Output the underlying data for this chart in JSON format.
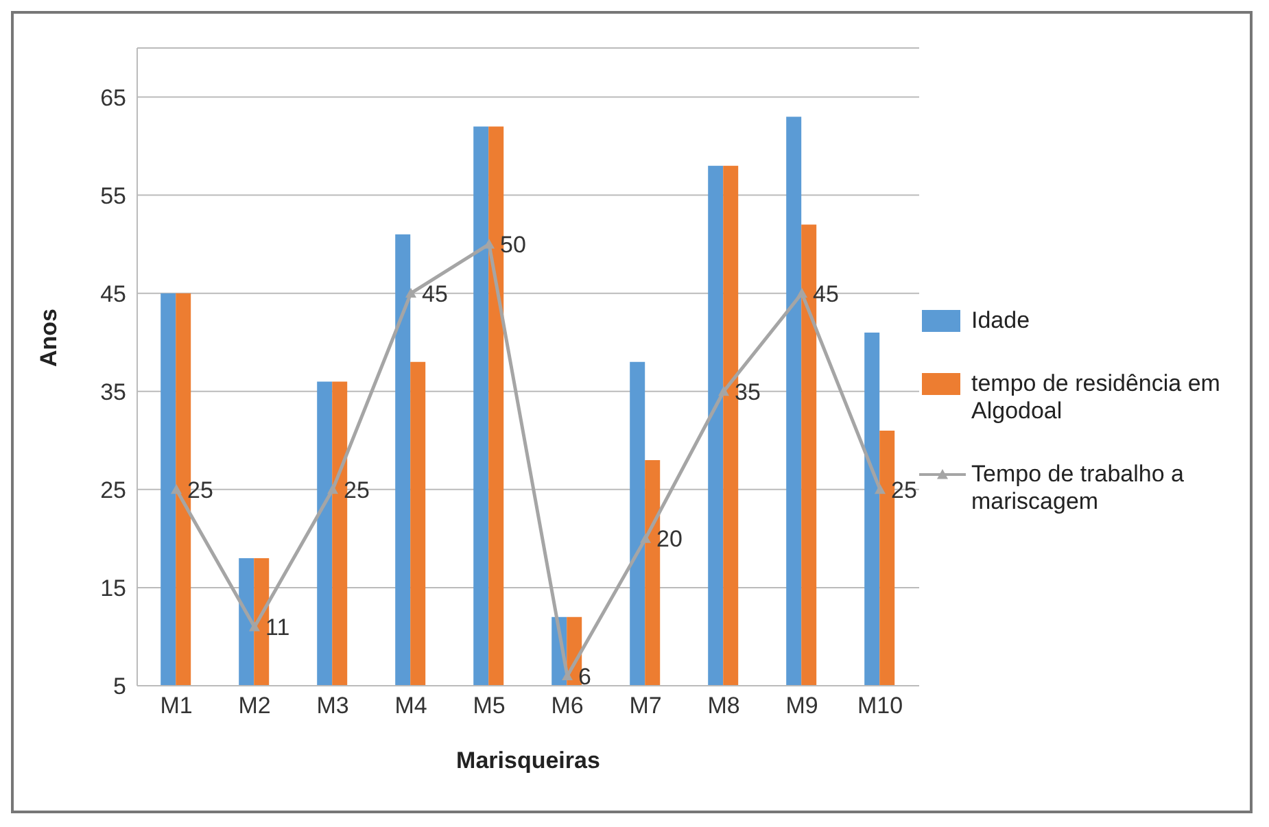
{
  "chart_data": {
    "type": "bar",
    "xlabel": "Marisqueiras",
    "ylabel": "Anos",
    "categories": [
      "M1",
      "M2",
      "M3",
      "M4",
      "M5",
      "M6",
      "M7",
      "M8",
      "M9",
      "M10"
    ],
    "series": [
      {
        "name": "Idade",
        "color": "#5b9bd5",
        "values": [
          45,
          18,
          36,
          51,
          62,
          12,
          38,
          58,
          63,
          41
        ]
      },
      {
        "name": "tempo de residência em Algodoal",
        "color": "#ed7d31",
        "values": [
          45,
          18,
          36,
          38,
          62,
          12,
          28,
          58,
          52,
          31
        ]
      },
      {
        "name": "Tempo de trabalho a mariscagem",
        "type": "line",
        "color": "#a5a5a5",
        "values": [
          25,
          11,
          25,
          45,
          50,
          6,
          20,
          35,
          45,
          25
        ],
        "value_labels": [
          "25",
          "11",
          "25",
          "45",
          "50",
          "6",
          "20",
          "35",
          "45",
          "25"
        ]
      }
    ],
    "ylim": [
      5,
      70
    ],
    "yticks": [
      5,
      15,
      25,
      35,
      45,
      55,
      65
    ],
    "grid": "y",
    "legend": "right",
    "marker": "triangle",
    "line_style": "solid"
  }
}
